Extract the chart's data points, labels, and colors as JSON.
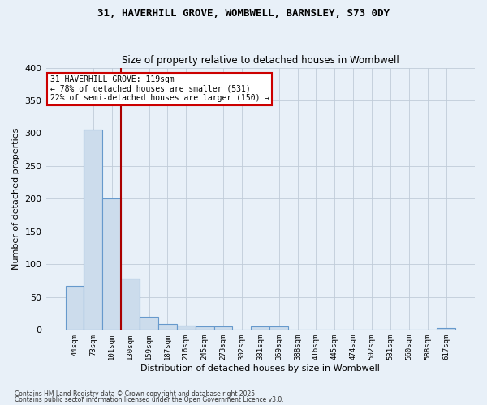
{
  "title1": "31, HAVERHILL GROVE, WOMBWELL, BARNSLEY, S73 0DY",
  "title2": "Size of property relative to detached houses in Wombwell",
  "xlabel": "Distribution of detached houses by size in Wombwell",
  "ylabel": "Number of detached properties",
  "categories": [
    "44sqm",
    "73sqm",
    "101sqm",
    "130sqm",
    "159sqm",
    "187sqm",
    "216sqm",
    "245sqm",
    "273sqm",
    "302sqm",
    "331sqm",
    "359sqm",
    "388sqm",
    "416sqm",
    "445sqm",
    "474sqm",
    "502sqm",
    "531sqm",
    "560sqm",
    "588sqm",
    "617sqm"
  ],
  "values": [
    67,
    305,
    200,
    78,
    20,
    9,
    6,
    5,
    5,
    0,
    5,
    5,
    0,
    0,
    0,
    0,
    0,
    0,
    0,
    0,
    3
  ],
  "bar_color": "#ccdcec",
  "bar_edge_color": "#6699cc",
  "vline_color": "#aa0000",
  "annotation_text": "31 HAVERHILL GROVE: 119sqm\n← 78% of detached houses are smaller (531)\n22% of semi-detached houses are larger (150) →",
  "annotation_box_color": "#ffffff",
  "annotation_box_edge": "#cc0000",
  "ylim": [
    0,
    400
  ],
  "yticks": [
    0,
    50,
    100,
    150,
    200,
    250,
    300,
    350,
    400
  ],
  "grid_color": "#c0ccd8",
  "bg_color": "#e8f0f8",
  "fig_bg": "#e8f0f8",
  "footer1": "Contains HM Land Registry data © Crown copyright and database right 2025.",
  "footer2": "Contains public sector information licensed under the Open Government Licence v3.0."
}
